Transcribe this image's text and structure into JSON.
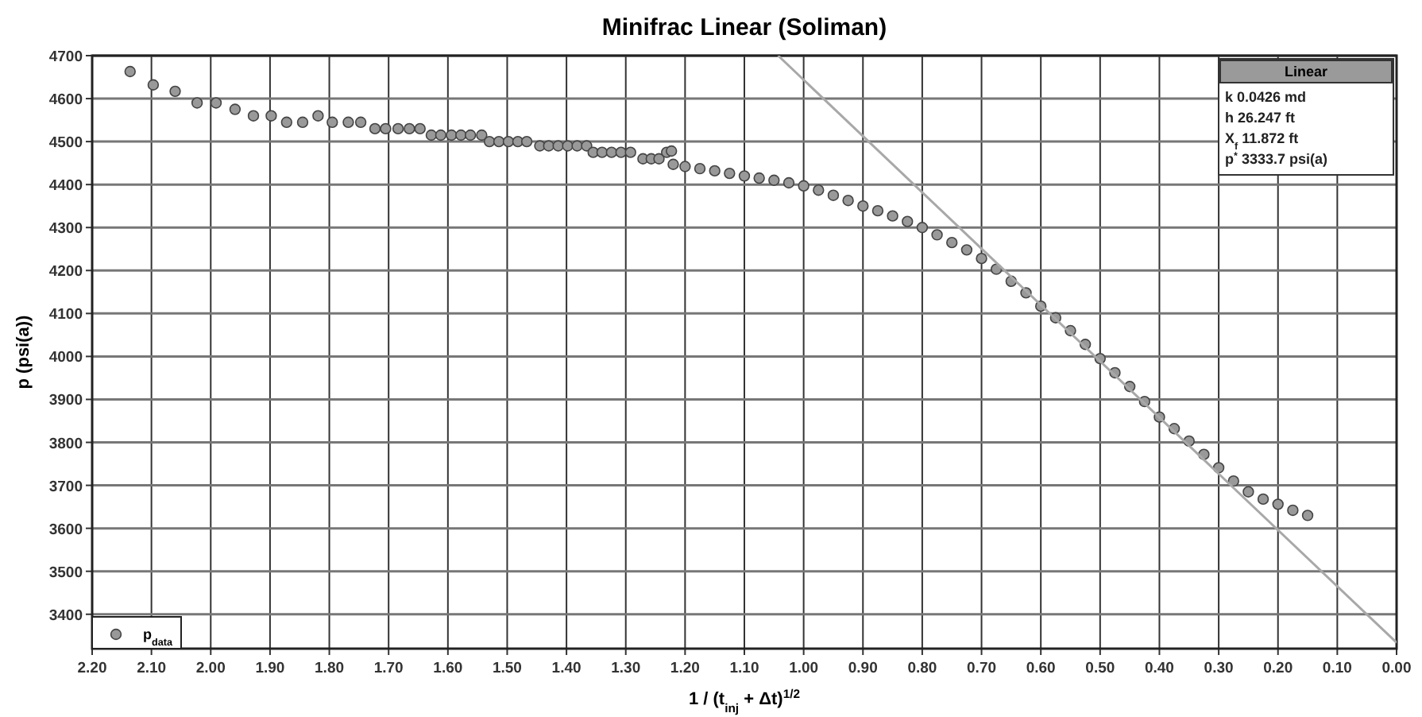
{
  "chart_data": {
    "type": "scatter",
    "title": "Minifrac Linear (Soliman)",
    "xlabel": "1 / (t$_{inj}$ + Δt)$^{1/2}$",
    "ylabel": "p  (psi(a))",
    "xlim": [
      2.2,
      0
    ],
    "xticks": [
      {
        "value": 2.2,
        "label": "2.20"
      },
      {
        "value": 2.1,
        "label": "2.10"
      },
      {
        "value": 2.0,
        "label": "2.00"
      },
      {
        "value": 1.9,
        "label": "1.90"
      },
      {
        "value": 1.8,
        "label": "1.80"
      },
      {
        "value": 1.7,
        "label": "1.70"
      },
      {
        "value": 1.6,
        "label": "1.60"
      },
      {
        "value": 1.5,
        "label": "1.50"
      },
      {
        "value": 1.4,
        "label": "1.40"
      },
      {
        "value": 1.3,
        "label": "1.30"
      },
      {
        "value": 1.2,
        "label": "1.20"
      },
      {
        "value": 1.1,
        "label": "1.10"
      },
      {
        "value": 1.0,
        "label": "1.00"
      },
      {
        "value": 0.9,
        "label": "0.90"
      },
      {
        "value": 0.8,
        "label": "0.80"
      },
      {
        "value": 0.7,
        "label": "0.70"
      },
      {
        "value": 0.6,
        "label": "0.60"
      },
      {
        "value": 0.5,
        "label": "0.50"
      },
      {
        "value": 0.4,
        "label": "0.40"
      },
      {
        "value": 0.3,
        "label": "0.30"
      },
      {
        "value": 0.2,
        "label": "0.20"
      },
      {
        "value": 0.1,
        "label": "0.10"
      },
      {
        "value": 0,
        "label": "0.00"
      }
    ],
    "ylim": [
      3320,
      4700
    ],
    "yticks": [
      3400,
      3500,
      3600,
      3700,
      3800,
      3900,
      4000,
      4100,
      4200,
      4300,
      4400,
      4500,
      4600,
      4700
    ],
    "grid": true,
    "legend": "bottom left",
    "marker": "circle",
    "annotations": [
      "Linear",
      "k  0.0426 md",
      "h  26.247 ft",
      "X$_{f}$  11.872 ft",
      "p$^{*}$  3333.7 psi(a)"
    ],
    "series": [
      {
        "name": "p$_{data}$",
        "color": "#999999",
        "x": [
          2.136,
          2.097,
          2.06,
          2.023,
          1.991,
          1.959,
          1.928,
          1.898,
          1.872,
          1.845,
          1.819,
          1.795,
          1.768,
          1.747,
          1.723,
          1.705,
          1.684,
          1.665,
          1.647,
          1.628,
          1.612,
          1.594,
          1.578,
          1.562,
          1.543,
          1.53,
          1.514,
          1.498,
          1.482,
          1.467,
          1.445,
          1.43,
          1.414,
          1.398,
          1.382,
          1.366,
          1.355,
          1.34,
          1.324,
          1.308,
          1.292,
          1.271,
          1.257,
          1.244,
          1.231,
          1.223,
          1.22,
          1.2,
          1.175,
          1.15,
          1.125,
          1.1,
          1.075,
          1.05,
          1.025,
          1.0,
          0.975,
          0.95,
          0.925,
          0.9,
          0.875,
          0.85,
          0.825,
          0.8,
          0.775,
          0.75,
          0.725,
          0.7,
          0.675,
          0.65,
          0.625,
          0.6,
          0.575,
          0.55,
          0.525,
          0.5,
          0.475,
          0.45,
          0.425,
          0.4,
          0.375,
          0.35,
          0.325,
          0.3,
          0.275,
          0.25,
          0.225,
          0.2,
          0.175,
          0.15
        ],
        "values": [
          4663,
          4632,
          4617,
          4590,
          4590,
          4575,
          4560,
          4560,
          4545,
          4545,
          4560,
          4545,
          4545,
          4545,
          4530,
          4530,
          4530,
          4530,
          4530,
          4515,
          4515,
          4515,
          4515,
          4515,
          4515,
          4500,
          4500,
          4500,
          4500,
          4500,
          4490,
          4490,
          4490,
          4490,
          4490,
          4490,
          4475,
          4475,
          4475,
          4475,
          4475,
          4460,
          4460,
          4460,
          4475,
          4478,
          4447,
          4442,
          4437,
          4432,
          4426,
          4420,
          4415,
          4410,
          4404,
          4397,
          4387,
          4375,
          4363,
          4350,
          4339,
          4327,
          4314,
          4300,
          4283,
          4265,
          4248,
          4228,
          4203,
          4175,
          4148,
          4117,
          4090,
          4060,
          4028,
          3995,
          3962,
          3930,
          3895,
          3859,
          3832,
          3803,
          3772,
          3741,
          3710,
          3685,
          3668,
          3656,
          3642,
          3630
        ]
      },
      {
        "type": "line",
        "color": "#a8a8a8",
        "x": [
          1.043,
          0
        ],
        "values": [
          4700,
          3334
        ],
        "marker": "none"
      }
    ]
  }
}
